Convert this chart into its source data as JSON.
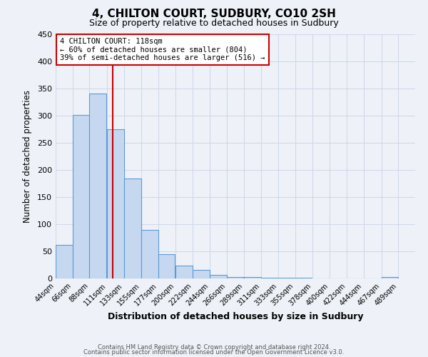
{
  "title": "4, CHILTON COURT, SUDBURY, CO10 2SH",
  "subtitle": "Size of property relative to detached houses in Sudbury",
  "xlabel": "Distribution of detached houses by size in Sudbury",
  "ylabel": "Number of detached properties",
  "bar_left_edges": [
    44,
    66,
    88,
    111,
    133,
    155,
    177,
    200,
    222,
    244,
    266,
    289,
    311,
    333,
    355,
    378,
    400,
    422,
    444,
    467
  ],
  "bar_heights": [
    62,
    301,
    340,
    275,
    184,
    90,
    45,
    23,
    16,
    7,
    3,
    2,
    1,
    1,
    1,
    0,
    0,
    0,
    0,
    2
  ],
  "bar_widths": [
    22,
    22,
    22,
    22,
    22,
    22,
    22,
    22,
    22,
    22,
    22,
    22,
    22,
    22,
    22,
    22,
    22,
    22,
    22,
    22
  ],
  "xtick_labels": [
    "44sqm",
    "66sqm",
    "88sqm",
    "111sqm",
    "133sqm",
    "155sqm",
    "177sqm",
    "200sqm",
    "222sqm",
    "244sqm",
    "266sqm",
    "289sqm",
    "311sqm",
    "333sqm",
    "355sqm",
    "378sqm",
    "400sqm",
    "422sqm",
    "444sqm",
    "467sqm",
    "489sqm"
  ],
  "xtick_positions": [
    44,
    66,
    88,
    111,
    133,
    155,
    177,
    200,
    222,
    244,
    266,
    289,
    311,
    333,
    355,
    378,
    400,
    422,
    444,
    467,
    489
  ],
  "ylim": [
    0,
    450
  ],
  "yticks": [
    0,
    50,
    100,
    150,
    200,
    250,
    300,
    350,
    400,
    450
  ],
  "bar_color": "#c5d8f0",
  "bar_edge_color": "#5b9bd5",
  "vline_x": 118,
  "vline_color": "#cc0000",
  "annotation_text": "4 CHILTON COURT: 118sqm\n← 60% of detached houses are smaller (804)\n39% of semi-detached houses are larger (516) →",
  "annotation_box_color": "#ffffff",
  "annotation_box_edge_color": "#cc0000",
  "grid_color": "#d0d8e8",
  "background_color": "#eef2f8",
  "footnote1": "Contains HM Land Registry data © Crown copyright and database right 2024.",
  "footnote2": "Contains public sector information licensed under the Open Government Licence v3.0."
}
